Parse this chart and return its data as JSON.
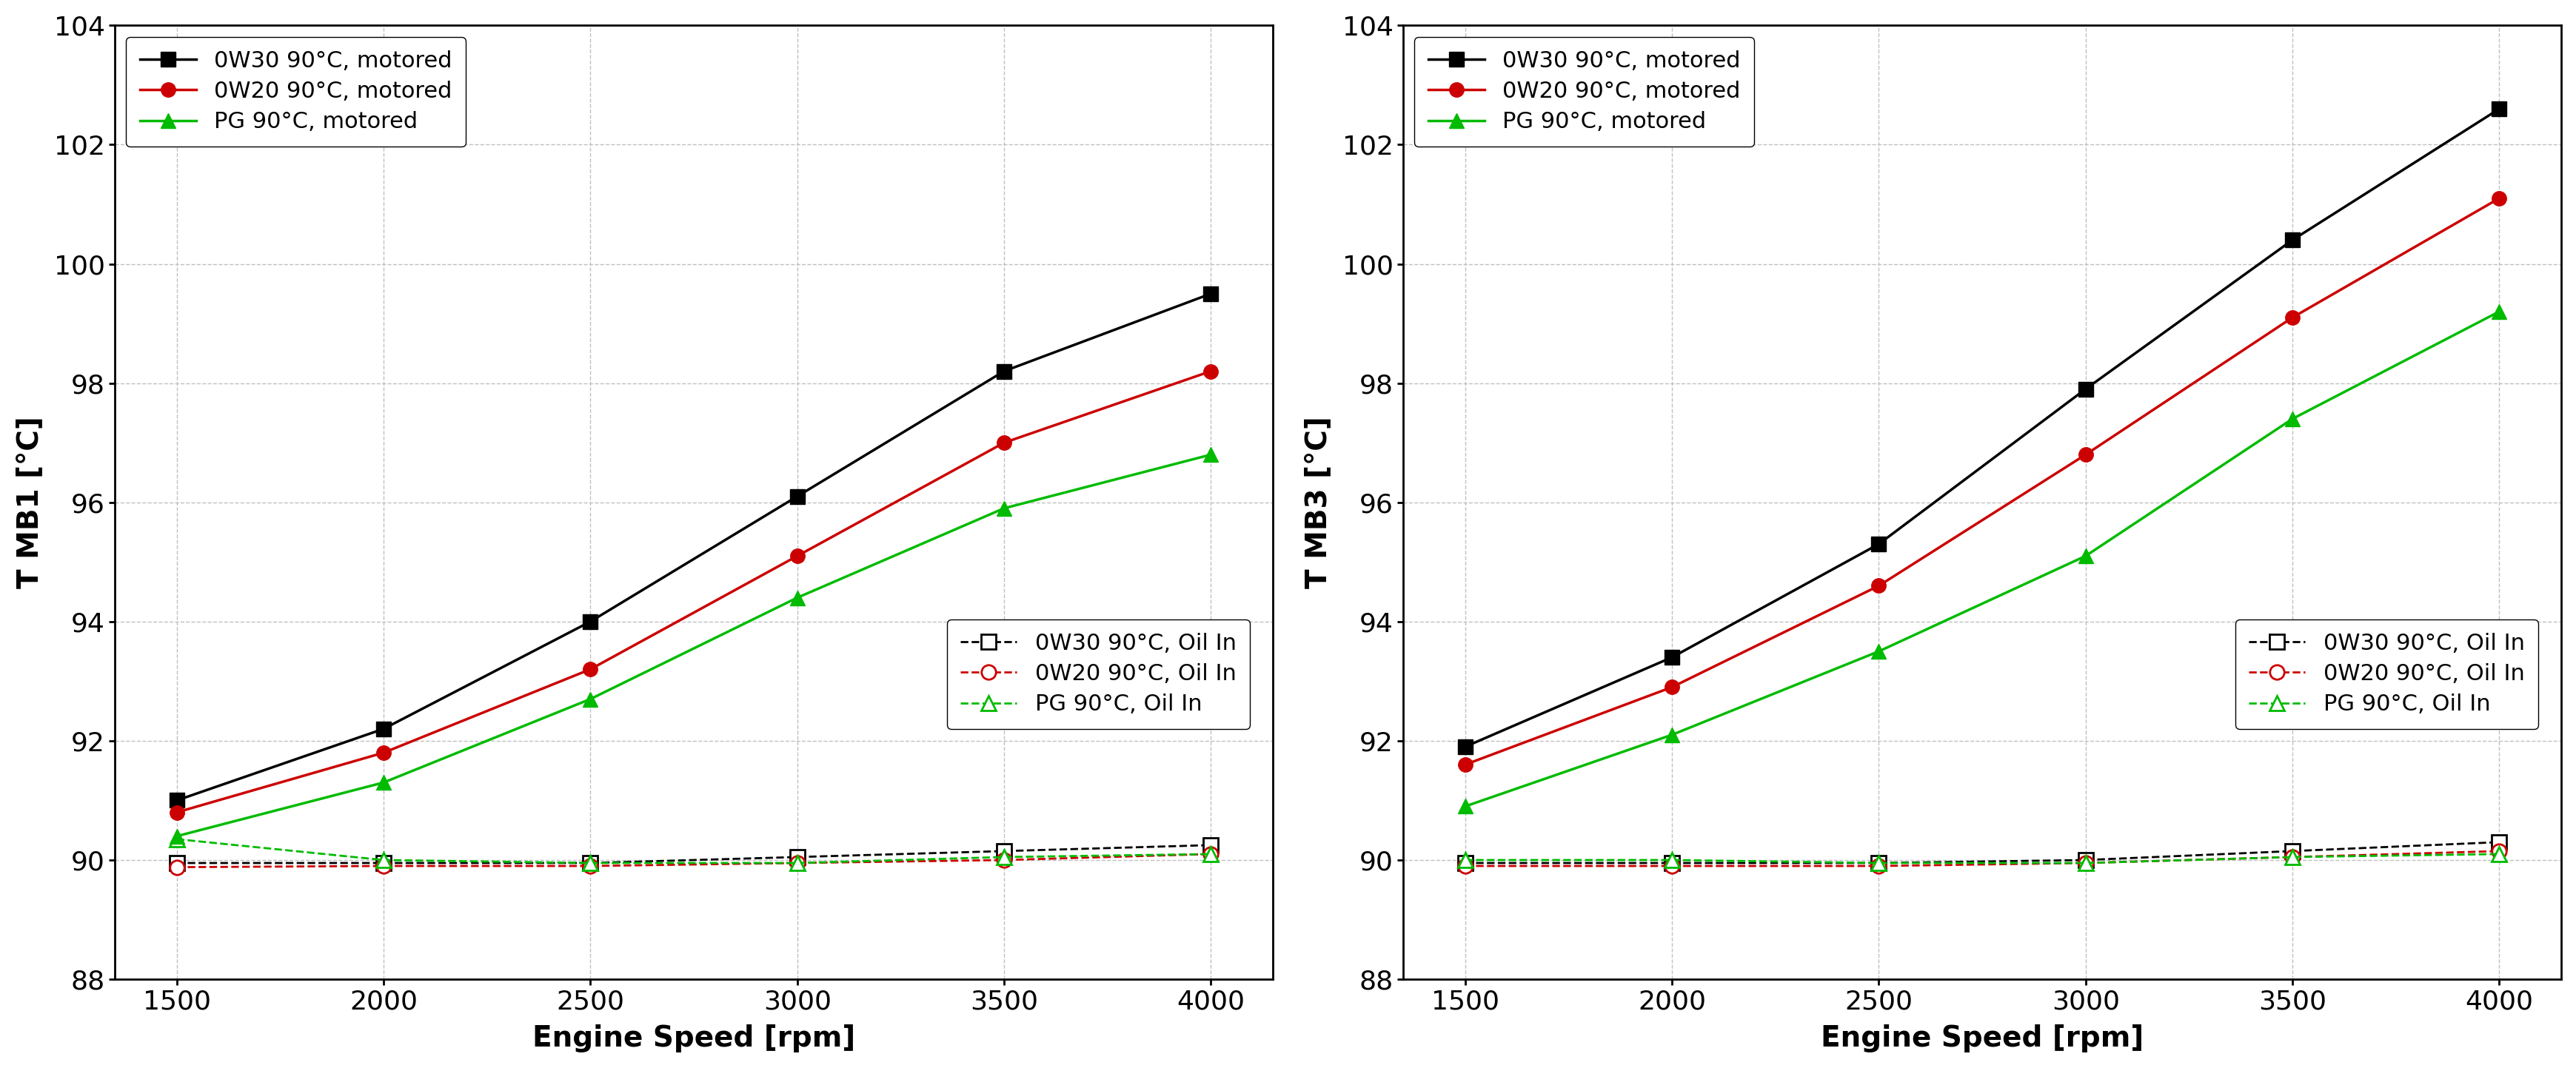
{
  "x": [
    1500,
    2000,
    2500,
    3000,
    3500,
    4000
  ],
  "left_chart": {
    "ylabel": "T MB1 [°C]",
    "motored_0W30": [
      91.0,
      92.2,
      94.0,
      96.1,
      98.2,
      99.5
    ],
    "motored_0W20": [
      90.8,
      91.8,
      93.2,
      95.1,
      97.0,
      98.2
    ],
    "motored_PG": [
      90.4,
      91.3,
      92.7,
      94.4,
      95.9,
      96.8
    ],
    "oilin_0W30": [
      89.95,
      89.95,
      89.95,
      90.05,
      90.15,
      90.25
    ],
    "oilin_0W20": [
      89.88,
      89.9,
      89.9,
      89.95,
      90.0,
      90.1
    ],
    "oilin_PG": [
      90.35,
      90.0,
      89.95,
      89.95,
      90.05,
      90.1
    ]
  },
  "right_chart": {
    "ylabel": "T MB3 [°C]",
    "motored_0W30": [
      91.9,
      93.4,
      95.3,
      97.9,
      100.4,
      102.6
    ],
    "motored_0W20": [
      91.6,
      92.9,
      94.6,
      96.8,
      99.1,
      101.1
    ],
    "motored_PG": [
      90.9,
      92.1,
      93.5,
      95.1,
      97.4,
      99.2
    ],
    "oilin_0W30": [
      89.95,
      89.95,
      89.95,
      90.0,
      90.15,
      90.3
    ],
    "oilin_0W20": [
      89.9,
      89.9,
      89.9,
      89.95,
      90.05,
      90.15
    ],
    "oilin_PG": [
      90.0,
      90.0,
      89.95,
      89.95,
      90.05,
      90.1
    ]
  },
  "xlabel": "Engine Speed [rpm]",
  "ylim": [
    88,
    104
  ],
  "yticks": [
    88,
    90,
    92,
    94,
    96,
    98,
    100,
    102,
    104
  ],
  "xticks": [
    1500,
    2000,
    2500,
    3000,
    3500,
    4000
  ],
  "colors": {
    "0W30": "#000000",
    "0W20": "#cc0000",
    "PG": "#00bb00"
  },
  "legend1_motored": [
    {
      "label": "0W30 90°C, motored",
      "color": "#000000",
      "marker": "s"
    },
    {
      "label": "0W20 90°C, motored",
      "color": "#cc0000",
      "marker": "o"
    },
    {
      "label": "PG 90°C, motored",
      "color": "#00bb00",
      "marker": "^"
    }
  ],
  "legend2_oilin": [
    {
      "label": "0W30 90°C, Oil In",
      "color": "#000000",
      "marker": "s"
    },
    {
      "label": "0W20 90°C, Oil In",
      "color": "#cc0000",
      "marker": "o"
    },
    {
      "label": "PG 90°C, Oil In",
      "color": "#00bb00",
      "marker": "^"
    }
  ],
  "bg_color": "#ffffff",
  "grid_color": "#c0c0c0",
  "label_fontsize": 28,
  "tick_fontsize": 26,
  "legend_fontsize": 22,
  "linewidth_solid": 2.5,
  "linewidth_dashed": 2.0,
  "markersize": 14
}
